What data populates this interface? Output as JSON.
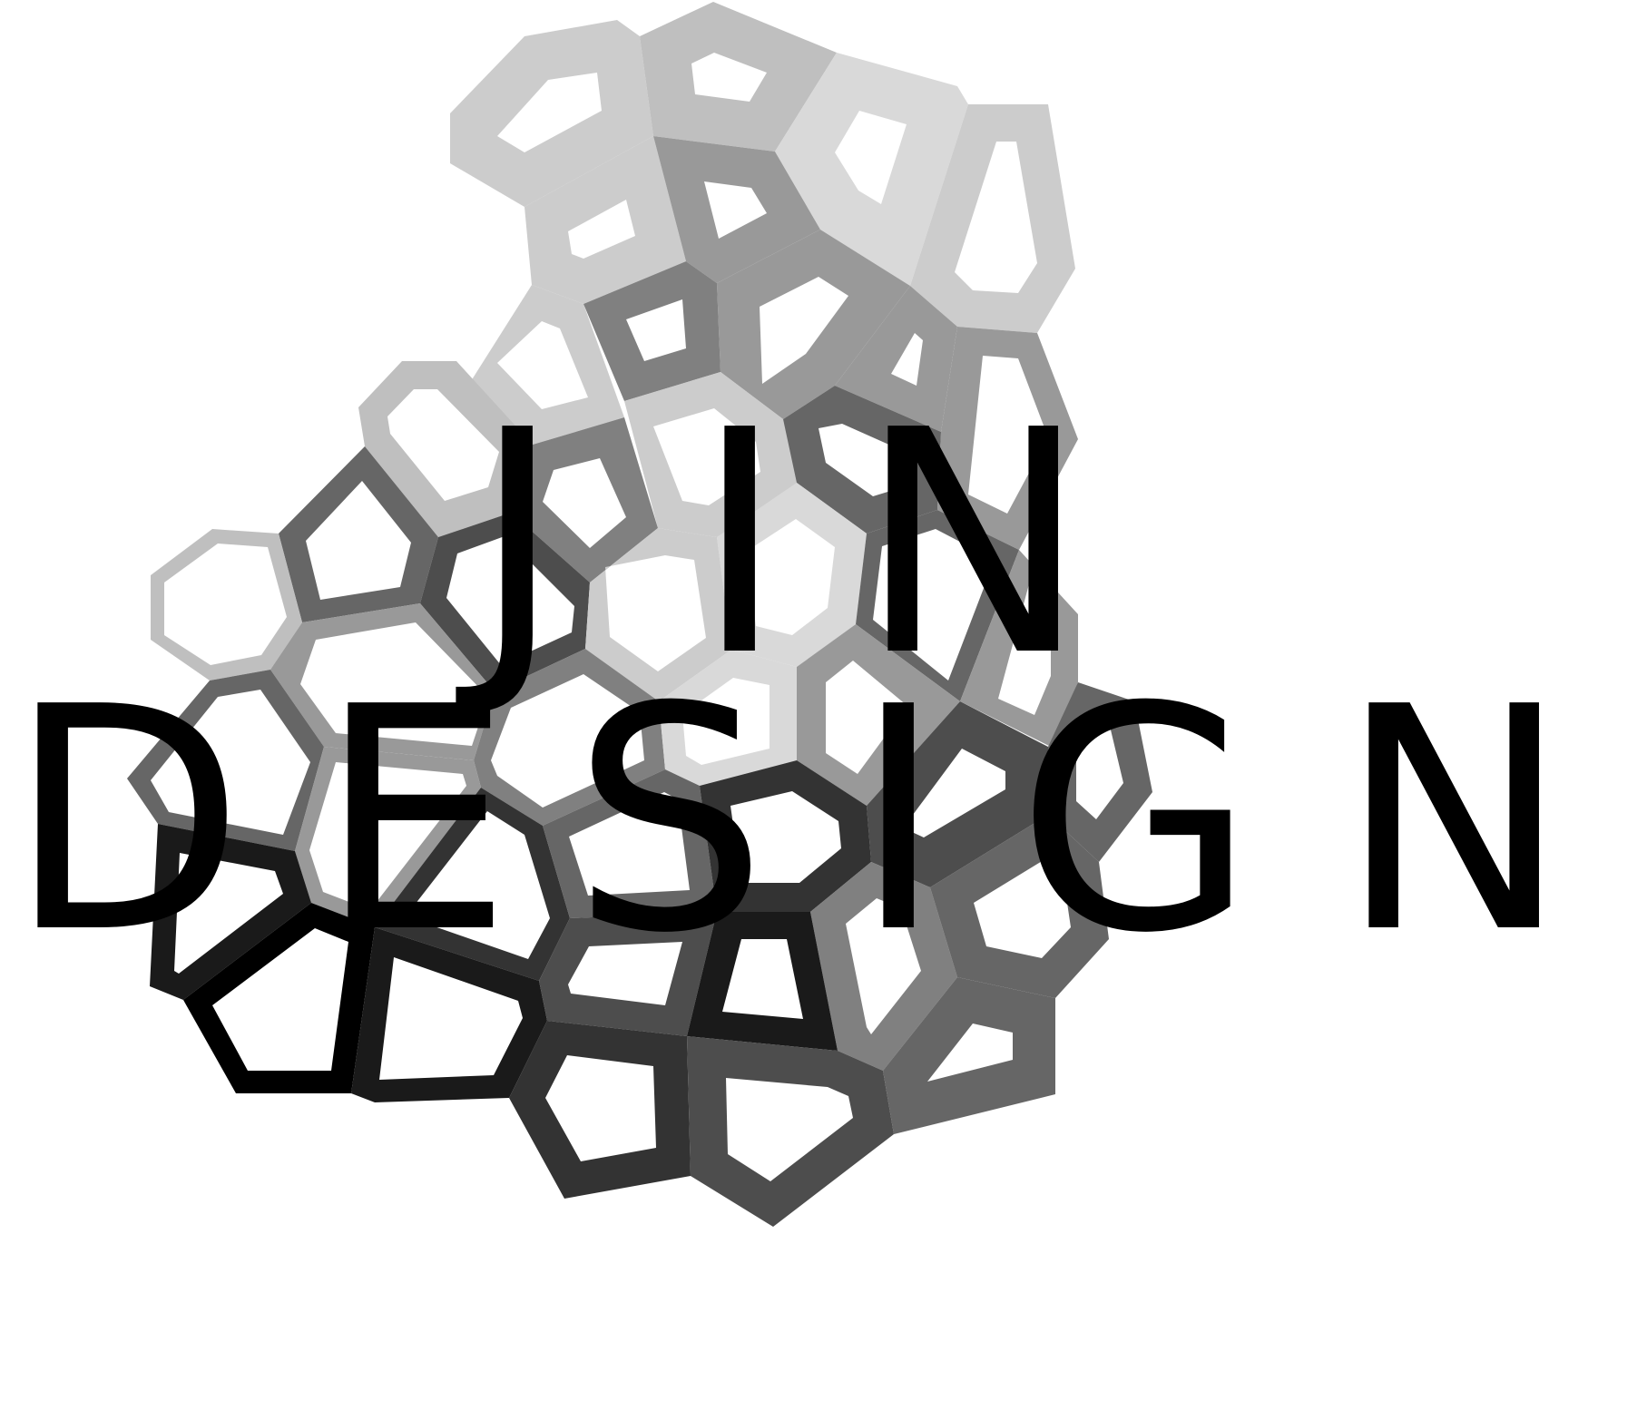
{
  "logo": {
    "line1": "JIN",
    "line2": "DESIGN",
    "text_color": "#000000",
    "background": "#ffffff",
    "cell_colors": {
      "top_light": "#cccccc",
      "upper_mid": "#bfbfbf",
      "lightest": "#d9d9d9",
      "mid": "#999999",
      "dark_mid": "#808080",
      "darker": "#666666",
      "dark": "#4d4d4d",
      "very_dark": "#333333",
      "near_black": "#1a1a1a",
      "black": "#000000"
    }
  }
}
